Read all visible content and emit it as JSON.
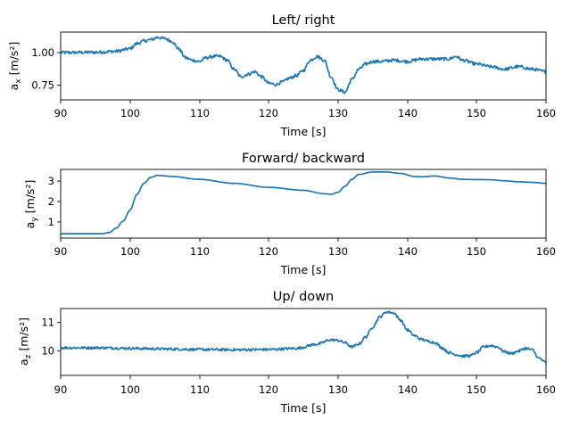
{
  "chart_data": [
    {
      "type": "line",
      "title": "Left/ right",
      "xlabel": "Time [s]",
      "ylabel_main": "a",
      "ylabel_sub": "x",
      "ylabel_unit": " [m/s²]",
      "xlim": [
        90,
        160
      ],
      "ylim": [
        0.64,
        1.17
      ],
      "xticks": [
        90,
        100,
        110,
        120,
        130,
        140,
        150,
        160
      ],
      "yticks": [
        0.75,
        1.0
      ],
      "ytick_labels": [
        "0.75",
        "1.00"
      ],
      "noise": 0.012,
      "series": [
        {
          "color": "#1f77b4",
          "points": [
            [
              90,
              1.01
            ],
            [
              95,
              1.012
            ],
            [
              98,
              1.02
            ],
            [
              100,
              1.04
            ],
            [
              101,
              1.08
            ],
            [
              102,
              1.1
            ],
            [
              103,
              1.11
            ],
            [
              104,
              1.13
            ],
            [
              105,
              1.12
            ],
            [
              106,
              1.1
            ],
            [
              107,
              1.04
            ],
            [
              108,
              0.97
            ],
            [
              109,
              0.95
            ],
            [
              110,
              0.94
            ],
            [
              111,
              0.97
            ],
            [
              112,
              0.98
            ],
            [
              113,
              0.98
            ],
            [
              114,
              0.95
            ],
            [
              115,
              0.88
            ],
            [
              116,
              0.82
            ],
            [
              117,
              0.84
            ],
            [
              118,
              0.86
            ],
            [
              119,
              0.82
            ],
            [
              120,
              0.77
            ],
            [
              121,
              0.76
            ],
            [
              122,
              0.78
            ],
            [
              123,
              0.81
            ],
            [
              124,
              0.83
            ],
            [
              125,
              0.87
            ],
            [
              126,
              0.95
            ],
            [
              127,
              0.98
            ],
            [
              128,
              0.95
            ],
            [
              129,
              0.82
            ],
            [
              130,
              0.72
            ],
            [
              131,
              0.7
            ],
            [
              132,
              0.8
            ],
            [
              133,
              0.88
            ],
            [
              134,
              0.92
            ],
            [
              135,
              0.94
            ],
            [
              136,
              0.94
            ],
            [
              138,
              0.95
            ],
            [
              140,
              0.94
            ],
            [
              142,
              0.96
            ],
            [
              144,
              0.96
            ],
            [
              146,
              0.96
            ],
            [
              147,
              0.98
            ],
            [
              148,
              0.95
            ],
            [
              150,
              0.92
            ],
            [
              152,
              0.9
            ],
            [
              154,
              0.88
            ],
            [
              156,
              0.9
            ],
            [
              158,
              0.88
            ],
            [
              160,
              0.86
            ]
          ]
        }
      ]
    },
    {
      "type": "line",
      "title": "Forward/ backward",
      "xlabel": "Time [s]",
      "ylabel_main": "a",
      "ylabel_sub": "y",
      "ylabel_unit": " [m/s²]",
      "xlim": [
        90,
        160
      ],
      "ylim": [
        0.1,
        3.55
      ],
      "xticks": [
        90,
        100,
        110,
        120,
        130,
        140,
        150,
        160
      ],
      "yticks": [
        1,
        2,
        3
      ],
      "ytick_labels": [
        "1",
        "2",
        "3"
      ],
      "noise": 0,
      "series": [
        {
          "color": "#1f77b4",
          "points": [
            [
              90,
              0.32
            ],
            [
              96,
              0.32
            ],
            [
              97,
              0.38
            ],
            [
              98,
              0.6
            ],
            [
              99,
              0.95
            ],
            [
              100,
              1.5
            ],
            [
              101,
              2.3
            ],
            [
              102,
              2.85
            ],
            [
              103,
              3.15
            ],
            [
              104,
              3.25
            ],
            [
              106,
              3.2
            ],
            [
              110,
              3.05
            ],
            [
              115,
              2.85
            ],
            [
              120,
              2.65
            ],
            [
              125,
              2.5
            ],
            [
              128,
              2.33
            ],
            [
              129,
              2.3
            ],
            [
              130,
              2.4
            ],
            [
              131,
              2.7
            ],
            [
              132,
              3.05
            ],
            [
              133,
              3.3
            ],
            [
              135,
              3.42
            ],
            [
              137,
              3.42
            ],
            [
              139,
              3.35
            ],
            [
              141,
              3.2
            ],
            [
              142,
              3.18
            ],
            [
              144,
              3.22
            ],
            [
              146,
              3.12
            ],
            [
              148,
              3.05
            ],
            [
              150,
              3.04
            ],
            [
              152,
              3.03
            ],
            [
              154,
              2.98
            ],
            [
              156,
              2.93
            ],
            [
              158,
              2.9
            ],
            [
              160,
              2.85
            ]
          ]
        }
      ]
    },
    {
      "type": "line",
      "title": "Up/ down",
      "xlabel": "Time [s]",
      "ylabel_main": "a",
      "ylabel_sub": "z",
      "ylabel_unit": " [m/s²]",
      "xlim": [
        90,
        160
      ],
      "ylim": [
        9.15,
        11.5
      ],
      "xticks": [
        90,
        100,
        110,
        120,
        130,
        140,
        150,
        160
      ],
      "yticks": [
        10,
        11
      ],
      "ytick_labels": [
        "10",
        "11"
      ],
      "noise": 0.045,
      "series": [
        {
          "color": "#1f77b4",
          "points": [
            [
              90,
              10.12
            ],
            [
              96,
              10.12
            ],
            [
              100,
              10.1
            ],
            [
              105,
              10.08
            ],
            [
              110,
              10.06
            ],
            [
              115,
              10.05
            ],
            [
              120,
              10.06
            ],
            [
              124,
              10.1
            ],
            [
              127,
              10.25
            ],
            [
              129,
              10.4
            ],
            [
              130,
              10.38
            ],
            [
              131,
              10.3
            ],
            [
              132,
              10.15
            ],
            [
              133,
              10.25
            ],
            [
              134,
              10.5
            ],
            [
              135,
              10.85
            ],
            [
              136,
              11.2
            ],
            [
              137,
              11.38
            ],
            [
              138,
              11.35
            ],
            [
              139,
              11.1
            ],
            [
              140,
              10.75
            ],
            [
              141,
              10.55
            ],
            [
              142,
              10.42
            ],
            [
              143,
              10.35
            ],
            [
              144,
              10.3
            ],
            [
              145,
              10.12
            ],
            [
              146,
              9.95
            ],
            [
              147,
              9.88
            ],
            [
              148,
              9.83
            ],
            [
              149,
              9.84
            ],
            [
              150,
              9.95
            ],
            [
              151,
              10.15
            ],
            [
              152,
              10.2
            ],
            [
              153,
              10.15
            ],
            [
              154,
              9.98
            ],
            [
              155,
              9.92
            ],
            [
              156,
              10.0
            ],
            [
              157,
              10.1
            ],
            [
              158,
              10.05
            ],
            [
              159,
              9.75
            ],
            [
              160,
              9.6
            ]
          ]
        }
      ]
    }
  ]
}
